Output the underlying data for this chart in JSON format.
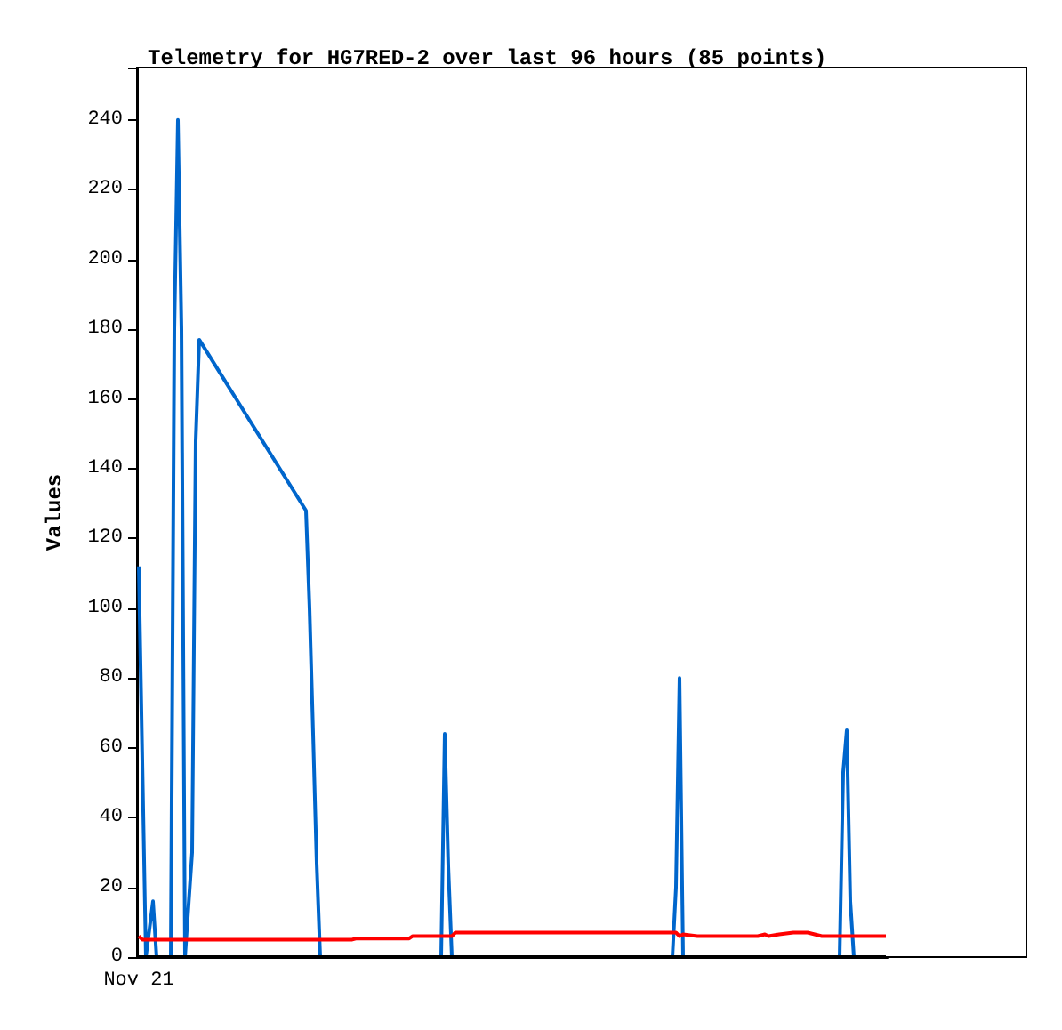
{
  "chart_data": {
    "type": "line",
    "title": "Telemetry for HG7RED-2 over last 96 hours (85 points)",
    "ylabel": "Values",
    "ylim": [
      0,
      255
    ],
    "yticks": [
      0,
      20,
      40,
      60,
      80,
      100,
      120,
      140,
      160,
      180,
      200,
      220,
      240
    ],
    "grid": false,
    "marker": "none",
    "line_style": "solid",
    "categories": [
      "Nov 21",
      null,
      null,
      null,
      null,
      null,
      null,
      null,
      null,
      null,
      null,
      null,
      null,
      null,
      null,
      null,
      null,
      null,
      null,
      null,
      null,
      null,
      null,
      null,
      null,
      null,
      null,
      null,
      null,
      null,
      null,
      null,
      null,
      null,
      null,
      null,
      null,
      null,
      null,
      null,
      null,
      null,
      null,
      null,
      null,
      null,
      null,
      null,
      null,
      null,
      null,
      null,
      null,
      null,
      null,
      null,
      null,
      null,
      null,
      null,
      null,
      null,
      null,
      null,
      null,
      null,
      null,
      null,
      null,
      null,
      null,
      null,
      null,
      null,
      null,
      null,
      null,
      null,
      null,
      null,
      null,
      null,
      null,
      null,
      null,
      null,
      null,
      null,
      null,
      null,
      null,
      null,
      null,
      null,
      null,
      null,
      null,
      null,
      null,
      null,
      null,
      null,
      null,
      null,
      null,
      null,
      null,
      null,
      null,
      null,
      null,
      null,
      null,
      null,
      null,
      null,
      null,
      null,
      null,
      null,
      null,
      null,
      null,
      null,
      null,
      null,
      null,
      null,
      null,
      null,
      null,
      null,
      null,
      null,
      null,
      null,
      null,
      null,
      null,
      null,
      null,
      null,
      null,
      null,
      null,
      null,
      null,
      null,
      null,
      null,
      null,
      null,
      null,
      null,
      null,
      null,
      null,
      null,
      null,
      null,
      null,
      null,
      null,
      null,
      null,
      null,
      null,
      null,
      null,
      null,
      null,
      null,
      null,
      null,
      null,
      null,
      null,
      null,
      null,
      null,
      null,
      null,
      null,
      null,
      null,
      null,
      null,
      null,
      null,
      null,
      null,
      null,
      null,
      null,
      null,
      null,
      null,
      null,
      null,
      null,
      null,
      null,
      null,
      null,
      null,
      null,
      null,
      null,
      null,
      null,
      null
    ],
    "series": [
      {
        "color": "#0066cc",
        "values": [
          112,
          56,
          0,
          null,
          16,
          0,
          null,
          null,
          null,
          0,
          180,
          240,
          180,
          0,
          null,
          30,
          148,
          177,
          null,
          null,
          null,
          null,
          null,
          null,
          null,
          null,
          null,
          null,
          null,
          null,
          null,
          null,
          null,
          null,
          null,
          null,
          null,
          null,
          null,
          null,
          null,
          null,
          null,
          null,
          null,
          null,
          null,
          128,
          100,
          64,
          27,
          0,
          null,
          null,
          null,
          null,
          null,
          null,
          null,
          null,
          null,
          null,
          null,
          null,
          null,
          null,
          null,
          null,
          null,
          null,
          null,
          null,
          null,
          null,
          null,
          null,
          null,
          null,
          null,
          null,
          null,
          null,
          null,
          null,
          null,
          0,
          64,
          26,
          0,
          null,
          null,
          null,
          null,
          null,
          null,
          null,
          null,
          null,
          null,
          null,
          null,
          null,
          null,
          null,
          null,
          null,
          null,
          null,
          null,
          null,
          null,
          null,
          null,
          null,
          null,
          null,
          null,
          null,
          null,
          null,
          null,
          null,
          null,
          null,
          null,
          null,
          null,
          null,
          null,
          null,
          null,
          null,
          null,
          null,
          null,
          null,
          null,
          null,
          null,
          null,
          null,
          null,
          null,
          null,
          null,
          null,
          null,
          null,
          null,
          null,
          0,
          20,
          80,
          0,
          null,
          null,
          null,
          null,
          null,
          null,
          null,
          null,
          null,
          null,
          null,
          null,
          null,
          null,
          null,
          null,
          null,
          null,
          null,
          null,
          null,
          null,
          null,
          null,
          null,
          null,
          null,
          null,
          null,
          null,
          null,
          null,
          null,
          null,
          null,
          null,
          null,
          null,
          null,
          null,
          null,
          null,
          null,
          0,
          53,
          65,
          16,
          0,
          null,
          null,
          null,
          null,
          null,
          null,
          null,
          null,
          null
        ]
      },
      {
        "color": "#ff0000",
        "values": [
          6,
          5,
          null,
          null,
          null,
          null,
          null,
          null,
          null,
          null,
          null,
          null,
          null,
          null,
          null,
          null,
          null,
          null,
          null,
          null,
          null,
          null,
          null,
          null,
          null,
          null,
          null,
          null,
          null,
          null,
          null,
          null,
          null,
          null,
          null,
          null,
          null,
          null,
          null,
          null,
          null,
          null,
          null,
          null,
          null,
          null,
          null,
          null,
          null,
          null,
          null,
          null,
          null,
          null,
          null,
          null,
          null,
          null,
          null,
          null,
          5,
          5.3,
          null,
          null,
          null,
          null,
          null,
          null,
          null,
          null,
          null,
          null,
          null,
          null,
          null,
          null,
          5.3,
          6,
          null,
          null,
          null,
          null,
          null,
          null,
          null,
          null,
          null,
          null,
          6,
          7,
          null,
          null,
          null,
          null,
          null,
          null,
          null,
          null,
          null,
          null,
          null,
          null,
          null,
          null,
          null,
          null,
          null,
          null,
          null,
          null,
          null,
          null,
          null,
          null,
          null,
          null,
          null,
          null,
          null,
          null,
          null,
          null,
          null,
          null,
          null,
          null,
          null,
          null,
          null,
          null,
          null,
          null,
          null,
          null,
          null,
          null,
          null,
          null,
          null,
          null,
          null,
          null,
          null,
          null,
          null,
          null,
          null,
          null,
          null,
          null,
          null,
          7,
          6,
          6.5,
          null,
          null,
          null,
          6,
          null,
          null,
          null,
          null,
          null,
          null,
          null,
          null,
          null,
          null,
          null,
          null,
          null,
          null,
          null,
          null,
          6,
          null,
          6.5,
          6,
          null,
          null,
          6.5,
          null,
          null,
          null,
          7,
          null,
          null,
          null,
          7,
          null,
          6.5,
          null,
          6,
          null,
          null,
          null,
          null,
          null,
          null,
          null,
          null,
          null,
          null,
          null,
          null,
          null,
          null,
          null,
          null,
          null,
          6
        ]
      },
      {
        "color": "#000000",
        "values": [
          0,
          null,
          null,
          null,
          null,
          null,
          null,
          null,
          null,
          null,
          null,
          null,
          null,
          null,
          null,
          null,
          null,
          null,
          null,
          null,
          null,
          null,
          null,
          null,
          null,
          null,
          null,
          null,
          null,
          null,
          null,
          null,
          null,
          null,
          null,
          null,
          null,
          null,
          null,
          null,
          null,
          null,
          null,
          null,
          null,
          null,
          null,
          null,
          null,
          null,
          null,
          null,
          null,
          null,
          null,
          null,
          null,
          null,
          null,
          null,
          null,
          null,
          null,
          null,
          null,
          null,
          null,
          null,
          null,
          null,
          null,
          null,
          null,
          null,
          null,
          null,
          null,
          null,
          null,
          null,
          null,
          null,
          null,
          null,
          null,
          null,
          null,
          null,
          null,
          null,
          null,
          null,
          null,
          null,
          null,
          null,
          null,
          null,
          null,
          null,
          null,
          null,
          null,
          null,
          null,
          null,
          null,
          null,
          null,
          null,
          null,
          null,
          null,
          null,
          null,
          null,
          null,
          null,
          null,
          null,
          null,
          null,
          null,
          null,
          null,
          null,
          null,
          null,
          null,
          null,
          null,
          null,
          null,
          null,
          null,
          null,
          null,
          null,
          null,
          null,
          null,
          null,
          null,
          null,
          null,
          null,
          null,
          null,
          null,
          null,
          null,
          null,
          null,
          null,
          null,
          null,
          null,
          null,
          null,
          null,
          null,
          null,
          null,
          null,
          null,
          null,
          null,
          null,
          null,
          null,
          null,
          null,
          null,
          null,
          null,
          null,
          null,
          null,
          null,
          null,
          null,
          null,
          null,
          null,
          null,
          null,
          null,
          null,
          null,
          null,
          null,
          null,
          null,
          null,
          null,
          null,
          null,
          null,
          null,
          null,
          null,
          null,
          null,
          null,
          null,
          null,
          null,
          null,
          null,
          null,
          0
        ]
      }
    ]
  }
}
